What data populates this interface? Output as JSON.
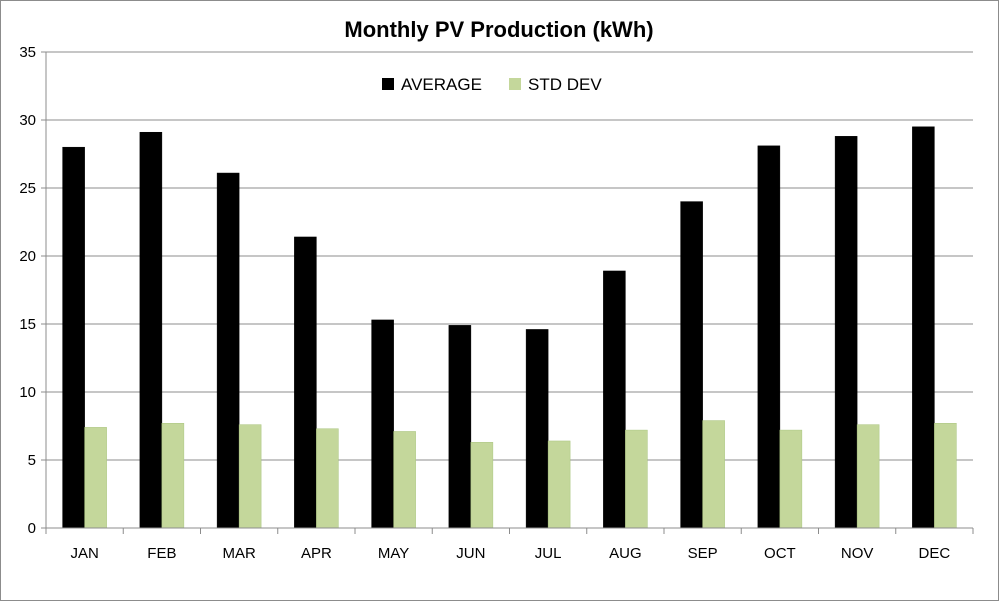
{
  "chart_data": {
    "type": "bar",
    "title": "Monthly PV Production (kWh)",
    "xlabel": "",
    "ylabel": "",
    "categories": [
      "JAN",
      "FEB",
      "MAR",
      "APR",
      "MAY",
      "JUN",
      "JUL",
      "AUG",
      "SEP",
      "OCT",
      "NOV",
      "DEC"
    ],
    "series": [
      {
        "name": "AVERAGE",
        "color": "#000000",
        "values": [
          28.0,
          29.1,
          26.1,
          21.4,
          15.3,
          14.9,
          14.6,
          18.9,
          24.0,
          28.1,
          28.8,
          29.5
        ]
      },
      {
        "name": "STD DEV",
        "color": "#c4d79b",
        "values": [
          7.4,
          7.7,
          7.6,
          7.3,
          7.1,
          6.3,
          6.4,
          7.2,
          7.9,
          7.2,
          7.6,
          7.7
        ]
      }
    ],
    "ylim": [
      0,
      35
    ],
    "yticks": [
      0,
      5,
      10,
      15,
      20,
      25,
      30,
      35
    ],
    "grid": true,
    "legend_position": "top-center"
  }
}
